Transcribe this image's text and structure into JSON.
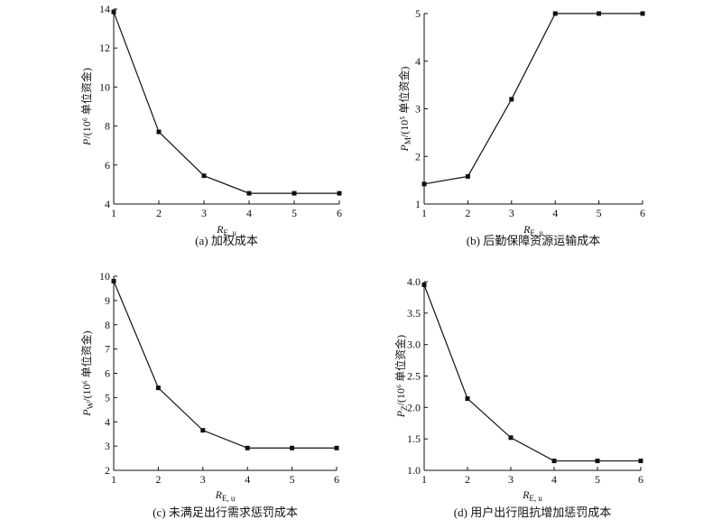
{
  "chart_data": [
    {
      "type": "line",
      "caption": "(a) 加权成本",
      "xlabel": "R",
      "xlabel_sub": "E, u",
      "ylabel": "P/(10⁶ 单位资金)",
      "x": [
        1,
        2,
        3,
        4,
        5,
        6
      ],
      "y": [
        13.85,
        7.7,
        5.45,
        4.55,
        4.55,
        4.55
      ],
      "xlim": [
        1,
        6
      ],
      "ylim": [
        4,
        14
      ],
      "xticks": [
        1,
        2,
        3,
        4,
        5,
        6
      ],
      "yticks": [
        4,
        6,
        8,
        10,
        12,
        14
      ]
    },
    {
      "type": "line",
      "caption": "(b) 后勤保障资源运输成本",
      "xlabel": "R",
      "xlabel_sub": "E, u",
      "ylabel": "P_M/(10⁵ 单位资金)",
      "x": [
        1,
        2,
        3,
        4,
        5,
        6
      ],
      "y": [
        1.42,
        1.58,
        3.2,
        5.0,
        5.0,
        5.0
      ],
      "xlim": [
        1,
        6
      ],
      "ylim": [
        1,
        5
      ],
      "xticks": [
        1,
        2,
        3,
        4,
        5,
        6
      ],
      "yticks": [
        1,
        2,
        3,
        4,
        5
      ]
    },
    {
      "type": "line",
      "caption": "(c) 未满足出行需求惩罚成本",
      "xlabel": "R",
      "xlabel_sub": "E, u",
      "ylabel": "P_W/(10⁶ 单位资金)",
      "x": [
        1,
        2,
        3,
        4,
        5,
        6
      ],
      "y": [
        9.8,
        5.4,
        3.65,
        2.92,
        2.92,
        2.92
      ],
      "xlim": [
        1,
        6
      ],
      "ylim": [
        2,
        10
      ],
      "xticks": [
        1,
        2,
        3,
        4,
        5,
        6
      ],
      "yticks": [
        2,
        3,
        4,
        5,
        6,
        7,
        8,
        9,
        10
      ]
    },
    {
      "type": "line",
      "caption": "(d) 用户出行阻抗增加惩罚成本",
      "xlabel": "R",
      "xlabel_sub": "E, u",
      "ylabel": "P_Z/(10⁶ 单位资金)",
      "x": [
        1,
        2,
        3,
        4,
        5,
        6
      ],
      "y": [
        3.95,
        2.14,
        1.52,
        1.15,
        1.15,
        1.15
      ],
      "xlim": [
        1,
        6
      ],
      "ylim": [
        1.0,
        4.0
      ],
      "xticks": [
        1,
        2,
        3,
        4,
        5,
        6
      ],
      "yticks": [
        "1.0",
        "1.5",
        "2.0",
        "2.5",
        "3.0",
        "3.5",
        "4.0"
      ]
    }
  ]
}
